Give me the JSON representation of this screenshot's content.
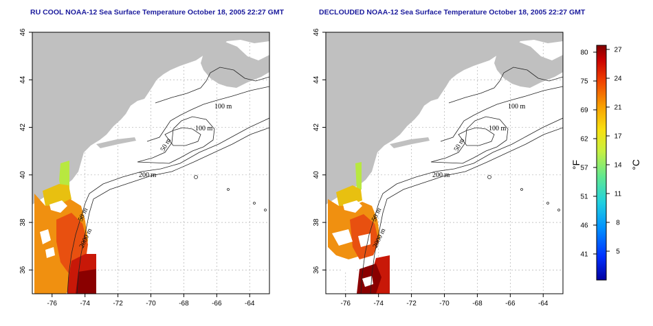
{
  "maps": [
    {
      "title": "RU COOL NOAA-12 Sea Surface Temperature October 18, 2005 22:27 GMT",
      "contour_labels": [
        "100 m",
        "100 m",
        "50 m",
        "200 m",
        "50 m",
        "2000 m"
      ]
    },
    {
      "title": "DECLOUDED NOAA-12 Sea Surface Temperature October 18, 2005 22:27 GMT",
      "contour_labels": [
        "100 m",
        "100 m",
        "50 m",
        "200 m",
        "50 m",
        "2000 m"
      ]
    }
  ],
  "axes": {
    "x_ticks": [
      "-76",
      "-74",
      "-72",
      "-70",
      "-68",
      "-66",
      "-64"
    ],
    "y_ticks": [
      "36",
      "38",
      "40",
      "42",
      "44",
      "46"
    ],
    "lon_range": [
      -77.2,
      -62.8
    ],
    "lat_range": [
      35,
      46
    ]
  },
  "colorbar": {
    "unit_f": "°F",
    "unit_c": "°C",
    "f_ticks": [
      "80",
      "75",
      "69",
      "62",
      "57",
      "51",
      "46",
      "41"
    ],
    "c_ticks": [
      "27",
      "24",
      "21",
      "17",
      "14",
      "11",
      "8",
      "5"
    ],
    "colors": [
      "#0000b0",
      "#0040ff",
      "#00a0ff",
      "#40e0c0",
      "#a0f060",
      "#f0f020",
      "#f8b000",
      "#f06000",
      "#d81000",
      "#900000"
    ]
  },
  "colors": {
    "land": "#c0c0c0",
    "water": "#ffffff",
    "grid": "#b0b0b0",
    "title": "#1a1a9c"
  }
}
